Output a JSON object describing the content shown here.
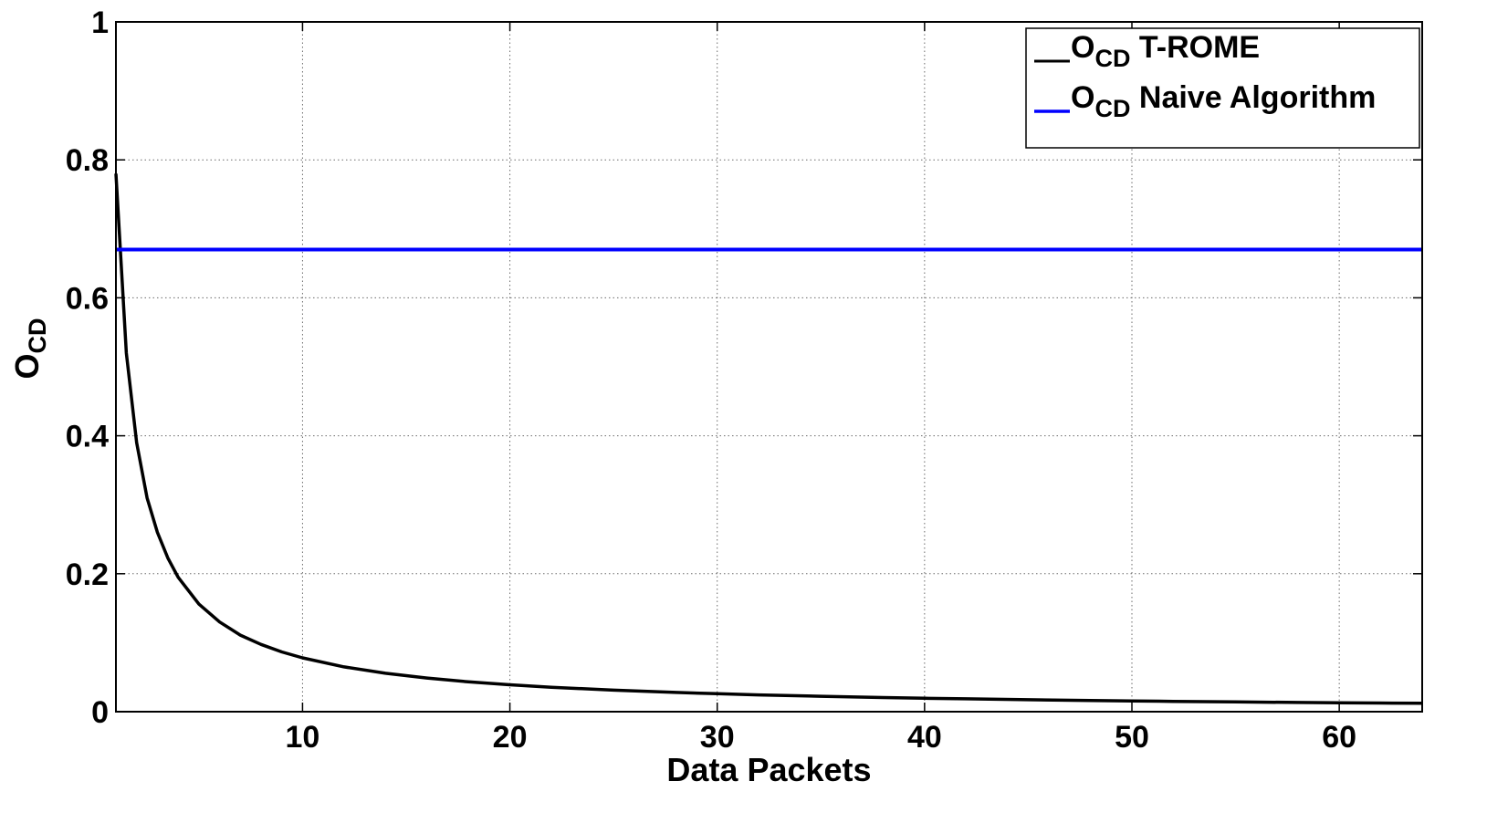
{
  "chart_data": {
    "type": "line",
    "title": "",
    "xlabel": "Data Packets",
    "ylabel": {
      "main": "O",
      "sub": "CD"
    },
    "xlim": [
      1,
      64
    ],
    "ylim": [
      0,
      1
    ],
    "xticks": [
      10,
      20,
      30,
      40,
      50,
      60
    ],
    "xtick_labels": [
      "10",
      "20",
      "30",
      "40",
      "50",
      "60"
    ],
    "yticks": [
      0,
      0.2,
      0.4,
      0.6,
      0.8,
      1
    ],
    "ytick_labels": [
      "0",
      "0.2",
      "0.4",
      "0.6",
      "0.8",
      "1"
    ],
    "grid": true,
    "grid_style": "dotted",
    "legend_position": "top-right",
    "series": [
      {
        "name": "O_CD T-ROME",
        "legend": {
          "main": "O",
          "sub": "CD",
          "rest": " T-ROME"
        },
        "color": "#000000",
        "x": [
          1,
          1.5,
          2,
          2.5,
          3,
          3.5,
          4,
          5,
          6,
          7,
          8,
          9,
          10,
          12,
          14,
          16,
          18,
          20,
          22,
          25,
          28,
          30,
          32,
          35,
          38,
          40,
          42,
          45,
          48,
          50,
          52,
          55,
          58,
          60,
          62,
          64
        ],
        "y": [
          0.78,
          0.52,
          0.39,
          0.31,
          0.26,
          0.223,
          0.195,
          0.156,
          0.13,
          0.111,
          0.0975,
          0.0867,
          0.078,
          0.065,
          0.0557,
          0.0488,
          0.0433,
          0.039,
          0.0355,
          0.0312,
          0.0279,
          0.026,
          0.0244,
          0.0223,
          0.0205,
          0.0195,
          0.0186,
          0.0173,
          0.0163,
          0.0156,
          0.015,
          0.0142,
          0.0134,
          0.013,
          0.0126,
          0.0122
        ]
      },
      {
        "name": "O_CD Naive Algorithm",
        "legend": {
          "main": "O",
          "sub": "CD",
          "rest": " Naive Algorithm"
        },
        "color": "#0000ff",
        "x": [
          1,
          64
        ],
        "y": [
          0.67,
          0.67
        ]
      }
    ]
  }
}
